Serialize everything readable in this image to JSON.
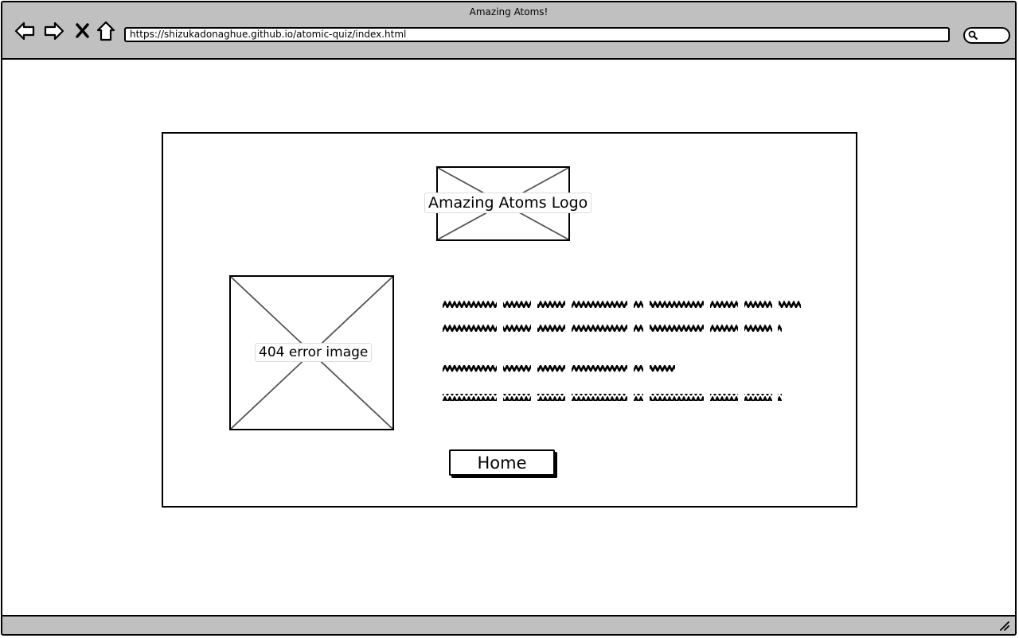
{
  "browser": {
    "window_title": "Amazing Atoms!",
    "url": "https://shizukadonaghue.github.io/atomic-quiz/index.html",
    "nav_icons": [
      "back-arrow-icon",
      "forward-arrow-icon",
      "stop-icon",
      "home-icon"
    ],
    "search_icon": "search-icon"
  },
  "page": {
    "logo_label": "Amazing Atoms Logo",
    "error_image_label": "404 error image",
    "home_button_label": "Home",
    "text_block": "scribbled placeholder text (4 lines)"
  },
  "colors": {
    "chrome_gray": "#c0c0c0",
    "border": "#000000",
    "placeholder_cross": "#555555"
  }
}
